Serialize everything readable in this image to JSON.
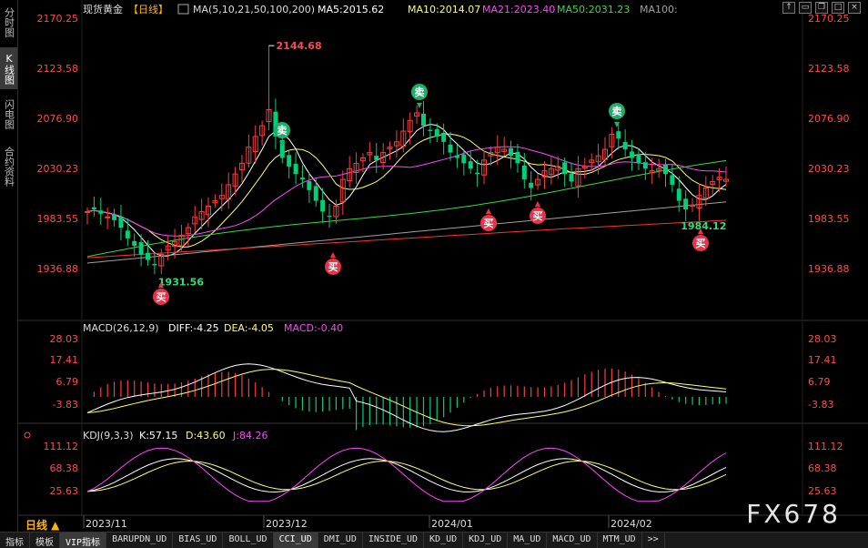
{
  "side_tabs": [
    {
      "label": "分时图",
      "active": false
    },
    {
      "label": "K线图",
      "active": true
    },
    {
      "label": "闪电图",
      "active": false
    },
    {
      "label": "合约资料",
      "active": false
    }
  ],
  "header": {
    "title": "现货黄金",
    "period": "【日线】",
    "ma_label": "MA(5,10,21,50,100,200)",
    "ma5": "MA5:2015.62",
    "ma10": "MA10:2014.07",
    "ma21": "MA21:2023.40",
    "ma50": "MA50:2031.23",
    "ma100": "MA100:"
  },
  "top_icons": [
    "up-arrow",
    "collapse",
    "restore",
    "maximize",
    "close"
  ],
  "price_axis": [
    "2170.25",
    "2123.58",
    "2076.90",
    "2030.23",
    "1983.55",
    "1936.88"
  ],
  "price_annotations": {
    "high": "2144.68",
    "low": "1931.56",
    "recent_low": "1984.12"
  },
  "signals": {
    "buy": "买",
    "sell": "卖"
  },
  "macd": {
    "title": "MACD(26,12,9)",
    "diff": "DIFF:-4.25",
    "dea": "DEA:-4.05",
    "macd": "MACD:-0.40",
    "axis": [
      "28.03",
      "17.41",
      "6.79",
      "-3.83"
    ]
  },
  "kdj": {
    "title": "KDJ(9,3,3)",
    "k": "K:57.15",
    "d": "D:43.60",
    "j": "J:84.26",
    "axis": [
      "111.12",
      "68.38",
      "25.63"
    ]
  },
  "time_axis": [
    "2023/11",
    "2023/12",
    "2024/01",
    "2024/02"
  ],
  "period_button": "日线 ▲",
  "bottom_tabs": [
    {
      "label": "指标",
      "active": false
    },
    {
      "label": "模板",
      "active": false
    },
    {
      "label": "VIP指标",
      "active": true
    },
    {
      "label": "BARUPDN_UD",
      "active": false
    },
    {
      "label": "BIAS_UD",
      "active": false
    },
    {
      "label": "BOLL_UD",
      "active": false
    },
    {
      "label": "CCI_UD",
      "active": true
    },
    {
      "label": "DMI_UD",
      "active": false
    },
    {
      "label": "INSIDE_UD",
      "active": false
    },
    {
      "label": "KD_UD",
      "active": false
    },
    {
      "label": "KDJ_UD",
      "active": false
    },
    {
      "label": "MA_UD",
      "active": false
    },
    {
      "label": "MACD_UD",
      "active": false
    },
    {
      "label": "MTM_UD",
      "active": false
    },
    {
      "label": ">>",
      "active": false
    }
  ],
  "watermark": "FX678",
  "colors": {
    "up": "#ff3b3b",
    "down": "#00d07a",
    "ma5": "#ffffff",
    "ma10": "#ffff66",
    "ma21": "#ff44ff",
    "ma50": "#33dd33",
    "ma100": "#a0a0a0",
    "ma200": "#ff3030"
  }
}
